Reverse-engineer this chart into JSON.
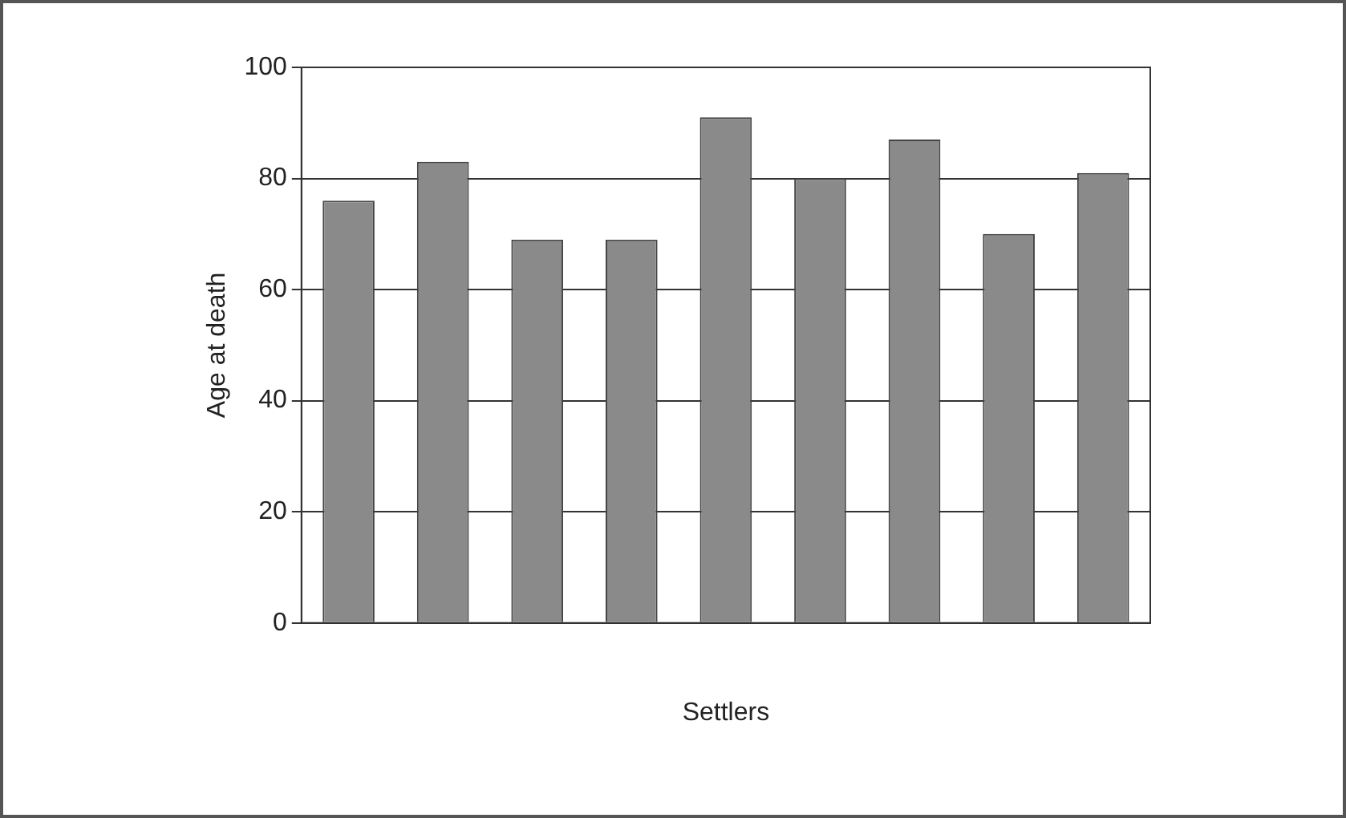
{
  "chart_data": {
    "type": "bar",
    "xlabel": "Settlers",
    "ylabel": "Age at death",
    "categories": [
      null,
      null,
      null,
      null,
      null,
      null,
      null,
      null,
      null
    ],
    "values": [
      76,
      83,
      69,
      69,
      91,
      80,
      87,
      70,
      81
    ],
    "color": "#8a8a8a",
    "ylim": [
      0,
      100
    ],
    "yticks": [
      0,
      20,
      40,
      60,
      80,
      100
    ],
    "grid": "y",
    "legend": false
  }
}
